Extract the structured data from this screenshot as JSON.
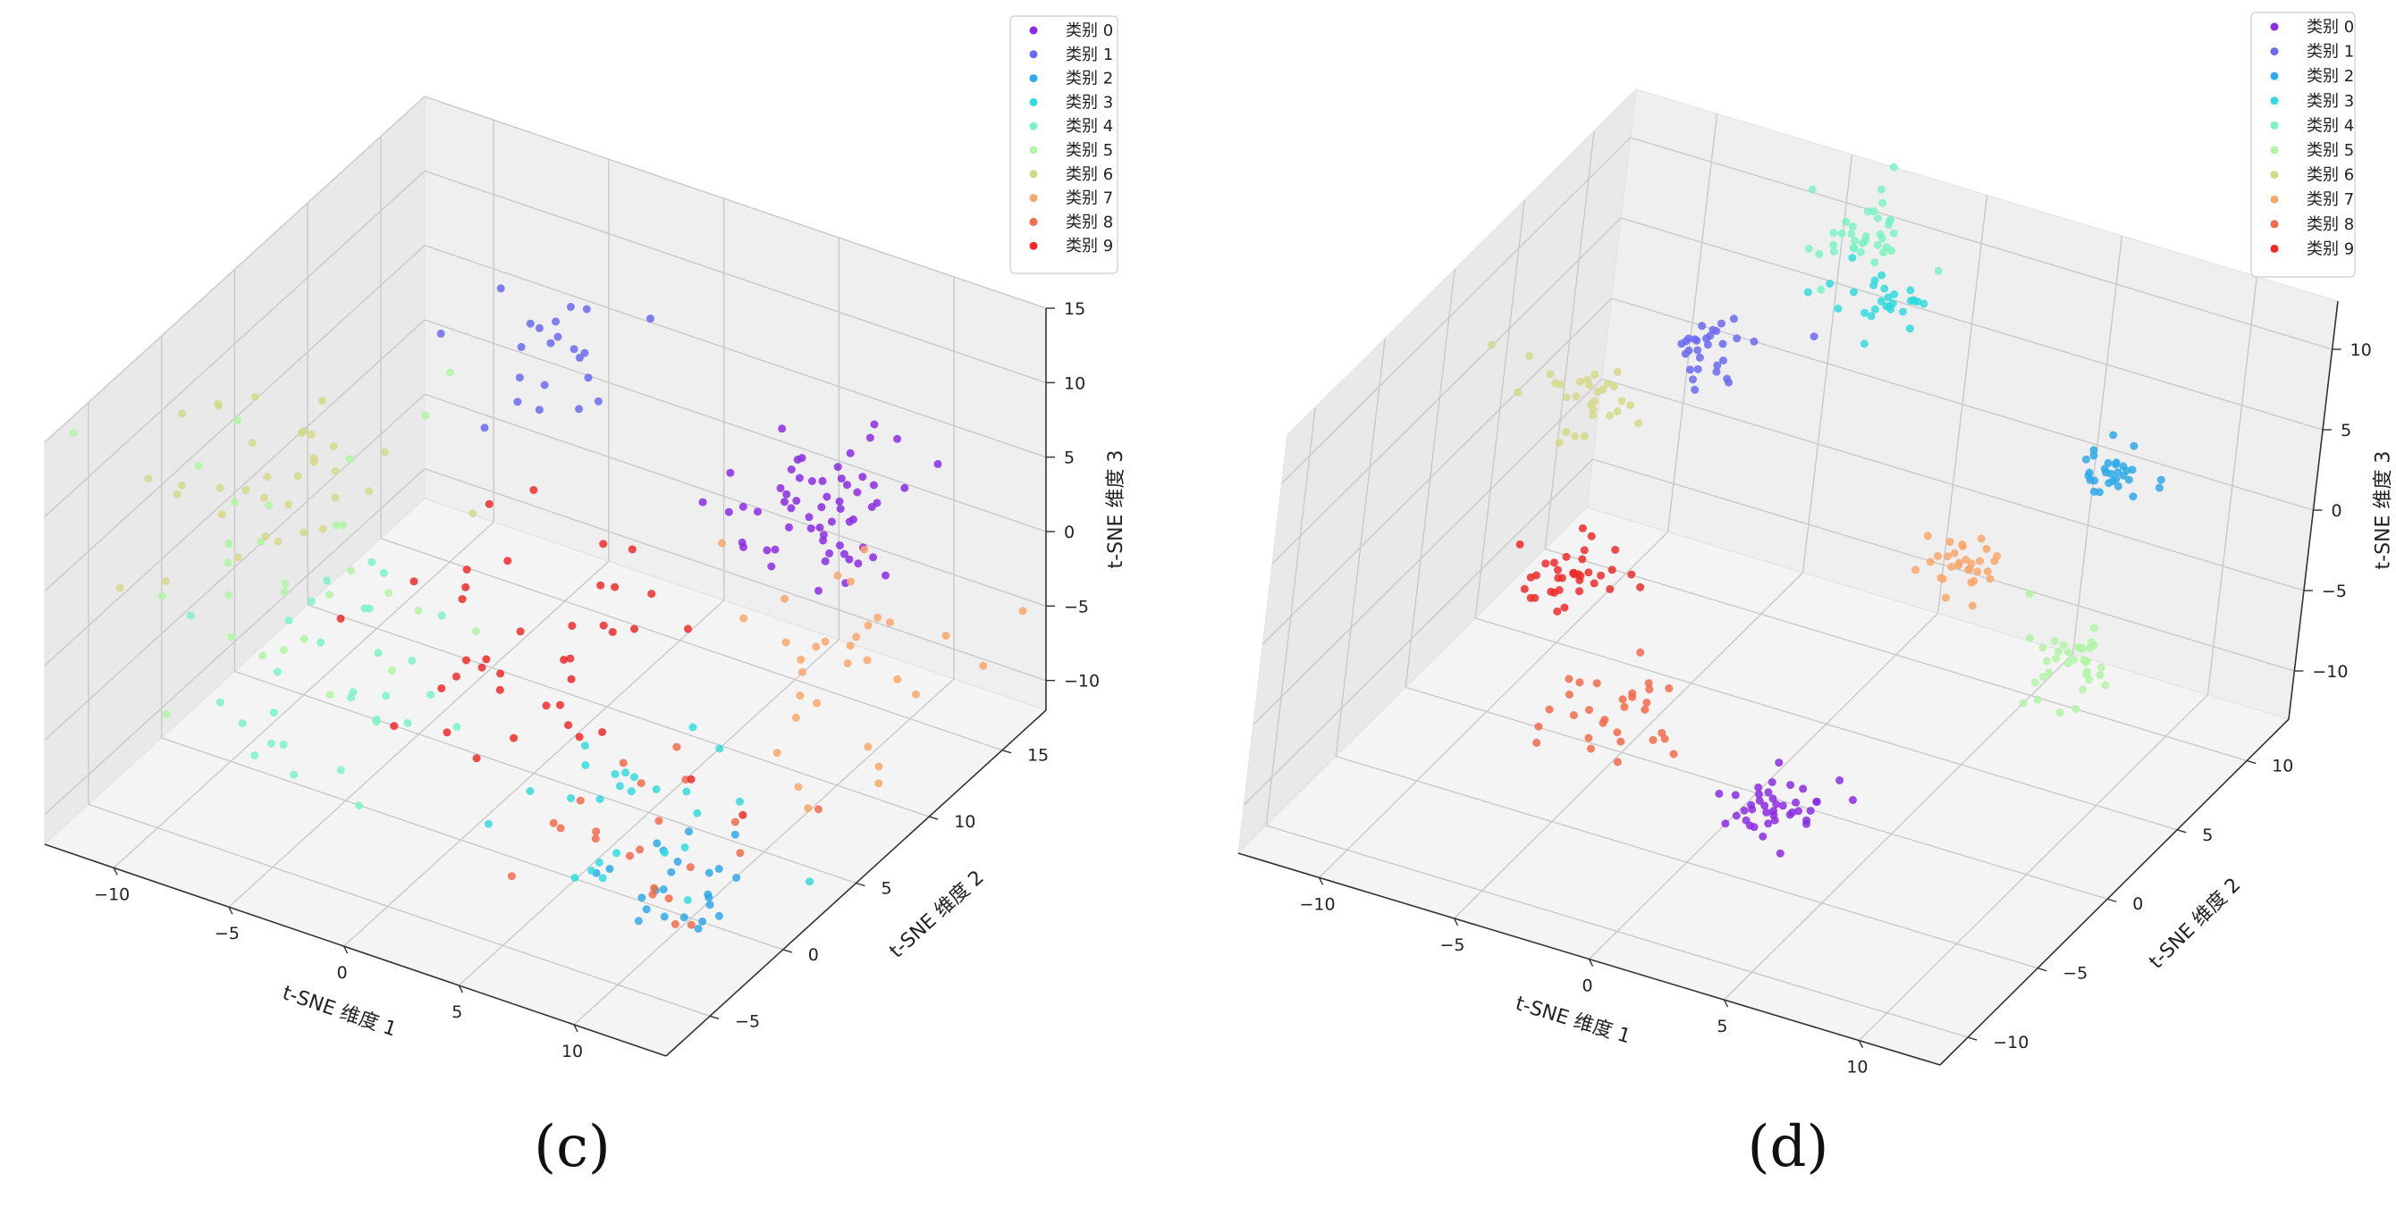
{
  "panels": [
    {
      "caption": "(c)"
    },
    {
      "caption": "(d)"
    }
  ],
  "chart_data": [
    {
      "type": "scatter",
      "title": "",
      "xlabel": "t-SNE 维度 1",
      "ylabel": "t-SNE 维度 2",
      "zlabel": "t-SNE 维度 3",
      "xlim": [
        -13,
        14
      ],
      "ylim": [
        -8,
        18
      ],
      "zlim": [
        -12,
        15
      ],
      "xticks": [
        "−10",
        "−5",
        "0",
        "5",
        "10"
      ],
      "yticks": [
        "−5",
        "0",
        "5",
        "10",
        "15"
      ],
      "zticks": [
        "−10",
        "−5",
        "0",
        "5",
        "10",
        "15"
      ],
      "legend_position": "top-right",
      "grid": true,
      "series": [
        {
          "name": "类别 0",
          "color": "#8B2BE2",
          "center": [
            7,
            13,
            2
          ],
          "spread": 1.8,
          "count": 60
        },
        {
          "name": "类别 1",
          "color": "#6A6AF0",
          "center": [
            -4,
            12,
            8
          ],
          "spread": 2.0,
          "count": 22
        },
        {
          "name": "类别 2",
          "color": "#2FA9E8",
          "center": [
            12,
            -3,
            -6
          ],
          "spread": 1.5,
          "count": 24
        },
        {
          "name": "类别 3",
          "color": "#34DADD",
          "center": [
            8,
            0,
            -6
          ],
          "spread": 2.5,
          "count": 26
        },
        {
          "name": "类别 4",
          "color": "#7DF2C4",
          "center": [
            -5,
            -1,
            -3
          ],
          "spread": 3.0,
          "count": 30
        },
        {
          "name": "类别 5",
          "color": "#B2F5A4",
          "center": [
            -9,
            2,
            0
          ],
          "spread": 3.0,
          "count": 30
        },
        {
          "name": "类别 6",
          "color": "#D3D98A",
          "center": [
            -11,
            4,
            2
          ],
          "spread": 2.5,
          "count": 34
        },
        {
          "name": "类别 7",
          "color": "#F9A76B",
          "center": [
            10,
            9,
            -2
          ],
          "spread": 2.5,
          "count": 32
        },
        {
          "name": "类别 8",
          "color": "#F26A4A",
          "center": [
            9,
            -1,
            -7
          ],
          "spread": 2.5,
          "count": 22
        },
        {
          "name": "类别 9",
          "color": "#EE2A2A",
          "center": [
            0,
            4,
            -2
          ],
          "spread": 3.5,
          "count": 40
        }
      ]
    },
    {
      "type": "scatter",
      "title": "",
      "xlabel": "t-SNE 维度 1",
      "ylabel": "t-SNE 维度 2",
      "zlabel": "t-SNE 维度 3",
      "xlim": [
        -13,
        13
      ],
      "ylim": [
        -12,
        13
      ],
      "zlim": [
        -13,
        13
      ],
      "xticks": [
        "−10",
        "−5",
        "0",
        "5",
        "10"
      ],
      "yticks": [
        "−10",
        "−5",
        "0",
        "5",
        "10"
      ],
      "zticks": [
        "−10",
        "−5",
        "0",
        "5",
        "10"
      ],
      "legend_position": "top-right",
      "grid": true,
      "series": [
        {
          "name": "类别 0",
          "color": "#8B2BE2",
          "center": [
            4,
            -8,
            -5
          ],
          "spread": 0.9,
          "count": 40
        },
        {
          "name": "类别 1",
          "color": "#6A6AF0",
          "center": [
            -8,
            10,
            2
          ],
          "spread": 0.9,
          "count": 30
        },
        {
          "name": "类别 2",
          "color": "#2FA9E8",
          "center": [
            8,
            8,
            4
          ],
          "spread": 0.8,
          "count": 30
        },
        {
          "name": "类别 3",
          "color": "#34DADD",
          "center": [
            -2,
            10,
            8
          ],
          "spread": 0.8,
          "count": 30
        },
        {
          "name": "类别 4",
          "color": "#7DF2C4",
          "center": [
            -2,
            8,
            14
          ],
          "spread": 1.0,
          "count": 36
        },
        {
          "name": "类别 5",
          "color": "#B2F5A4",
          "center": [
            9,
            3,
            -3
          ],
          "spread": 0.9,
          "count": 36
        },
        {
          "name": "类别 6",
          "color": "#D3D98A",
          "center": [
            -11,
            7,
            0
          ],
          "spread": 1.0,
          "count": 30
        },
        {
          "name": "类别 7",
          "color": "#F9A76B",
          "center": [
            4,
            5,
            -1
          ],
          "spread": 0.8,
          "count": 30
        },
        {
          "name": "类别 8",
          "color": "#F26A4A",
          "center": [
            -3,
            -6,
            -4
          ],
          "spread": 1.0,
          "count": 30
        },
        {
          "name": "类别 9",
          "color": "#EE2A2A",
          "center": [
            -8,
            1,
            -4
          ],
          "spread": 0.9,
          "count": 36
        }
      ]
    }
  ]
}
